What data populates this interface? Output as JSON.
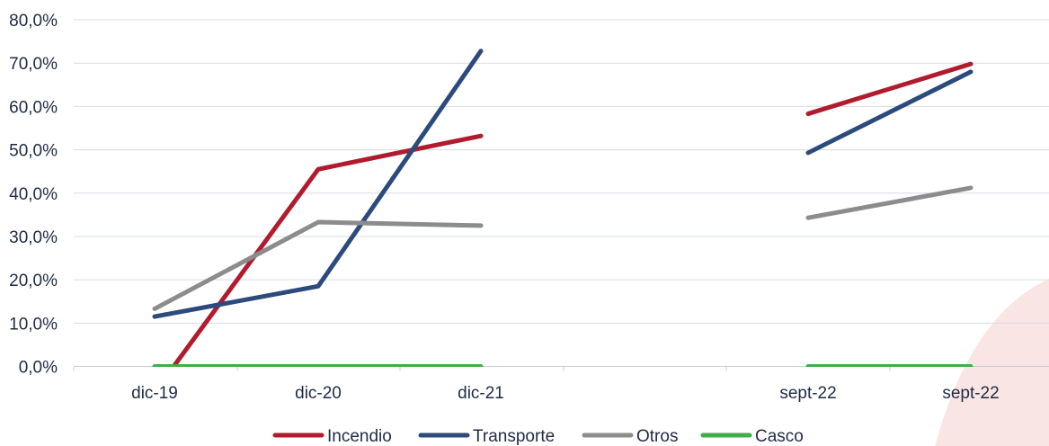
{
  "chart_data": {
    "type": "line",
    "categories": [
      "dic-19",
      "dic-20",
      "dic-21",
      "",
      "sept-22",
      "sept-22"
    ],
    "ylim": [
      0,
      80
    ],
    "yticks": [
      "0,0%",
      "10,0%",
      "20,0%",
      "30,0%",
      "40,0%",
      "50,0%",
      "60,0%",
      "70,0%",
      "80,0%"
    ],
    "grid": "horizontal",
    "legend": "bottom",
    "series": [
      {
        "name": "Incendio",
        "color": "#b01c2e",
        "values": [
          -6,
          45.5,
          53.2,
          null,
          58.3,
          69.8
        ]
      },
      {
        "name": "Transporte",
        "color": "#2c4a7c",
        "values": [
          11.5,
          18.5,
          72.8,
          null,
          49.3,
          68.0
        ]
      },
      {
        "name": "Otros",
        "color": "#8c8c8c",
        "values": [
          13.3,
          33.3,
          32.5,
          null,
          34.3,
          41.2
        ]
      },
      {
        "name": "Casco",
        "color": "#3fae49",
        "values": [
          0,
          0,
          0,
          null,
          0,
          0
        ]
      }
    ]
  }
}
